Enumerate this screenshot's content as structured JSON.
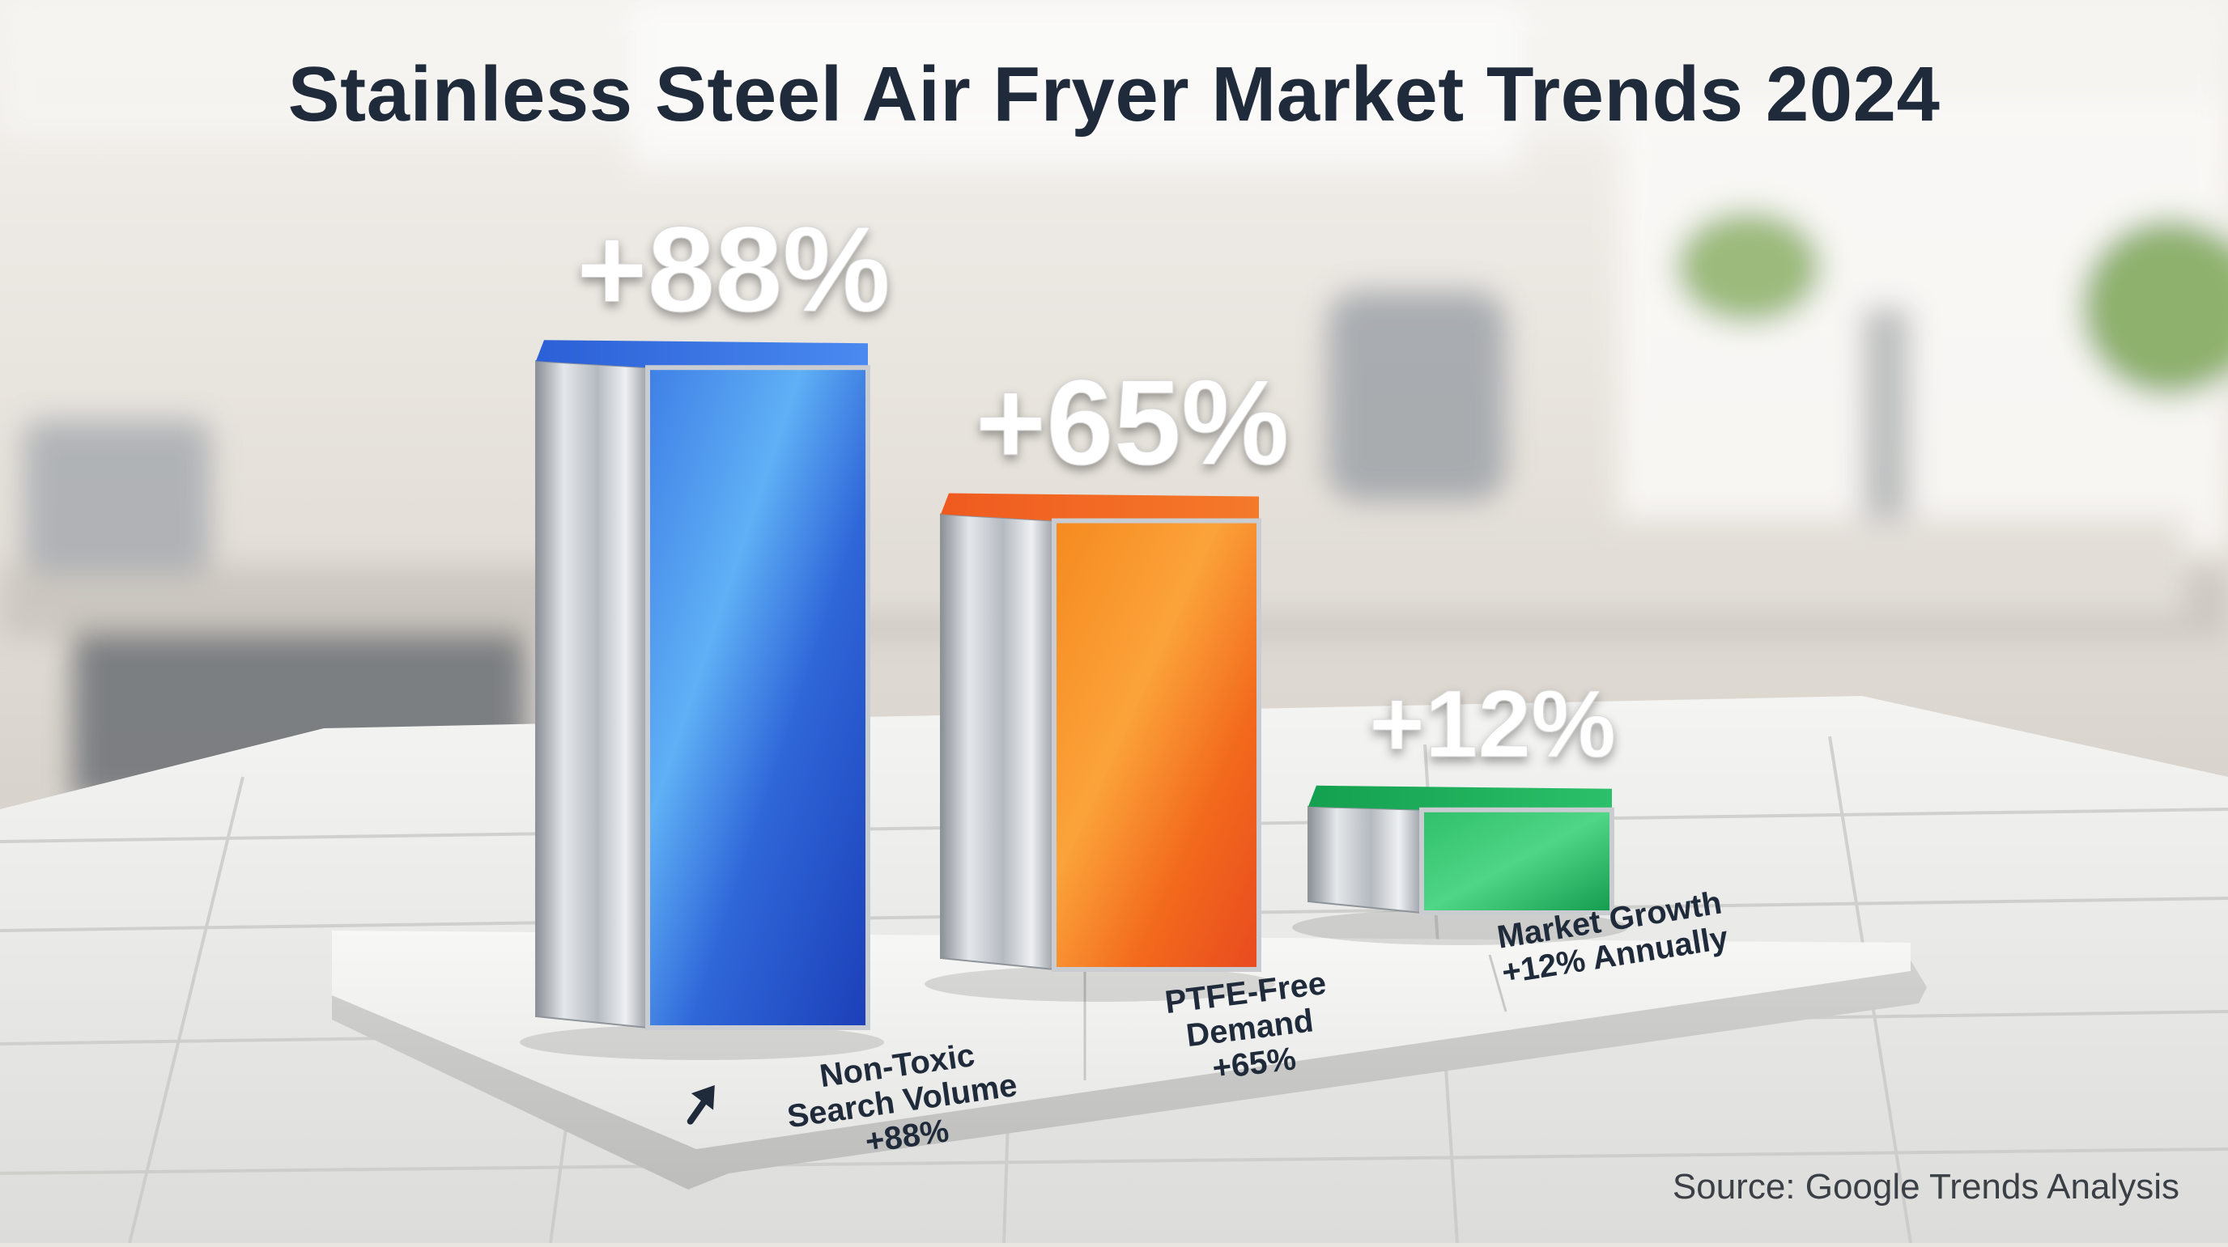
{
  "chart_data": {
    "type": "bar",
    "title": "Stainless Steel Air Fryer Market Trends 2024",
    "source": "Source: Google Trends Analysis",
    "unit": "%",
    "categories": [
      "Non-Toxic Search Volume +88%",
      "PTFE-Free Demand +65%",
      "Market Growth +12% Annually"
    ],
    "category_lines": [
      [
        "Non-Toxic",
        "Search Volume",
        "+88%"
      ],
      [
        "PTFE-Free",
        "Demand",
        "+65%"
      ],
      [
        "Market Growth",
        "+12% Annually"
      ]
    ],
    "values": [
      88,
      65,
      12
    ],
    "value_labels": [
      "+88%",
      "+65%",
      "+12%"
    ],
    "colors": [
      "#2563eb",
      "#f26a1b",
      "#1fae5b"
    ],
    "ylim": [
      0,
      100
    ],
    "grid": false,
    "legend": "none",
    "arrow_icon": "arrow-up-right-icon"
  }
}
